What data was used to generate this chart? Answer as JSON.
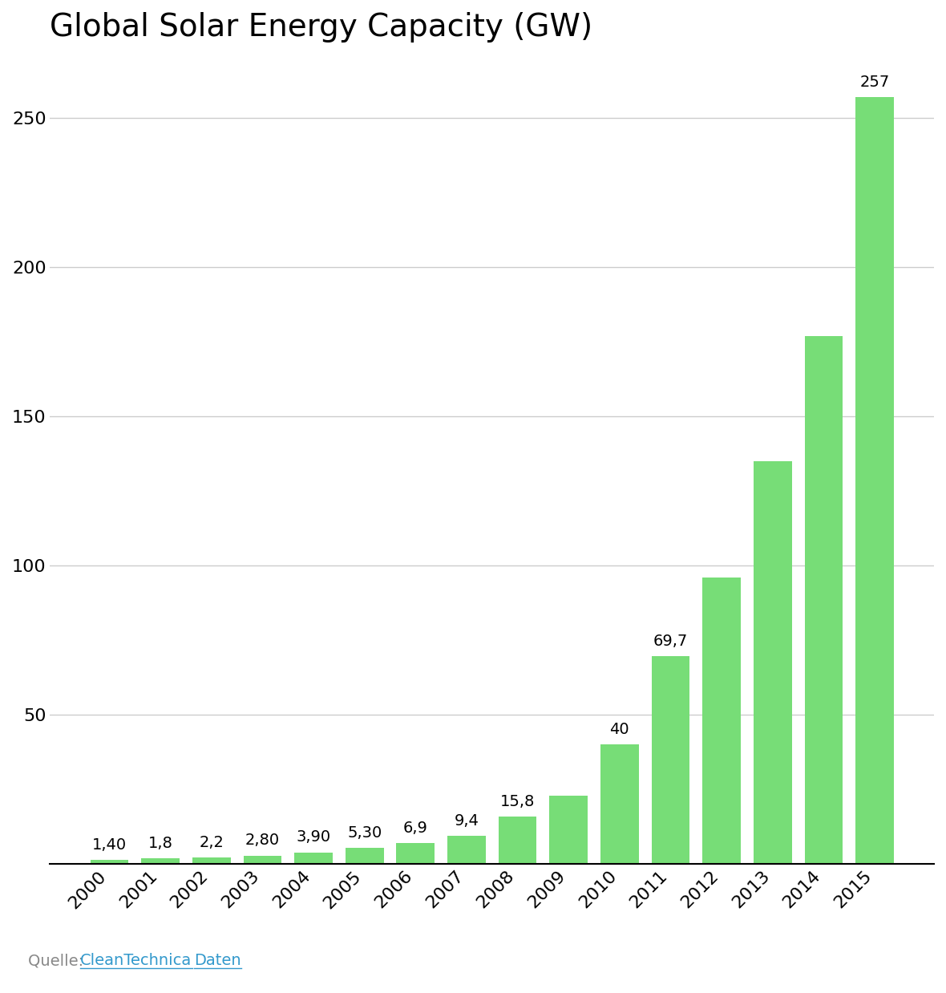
{
  "title": "Global Solar Energy Capacity (GW)",
  "categories": [
    "2000",
    "2001",
    "2002",
    "2003",
    "2004",
    "2005",
    "2006",
    "2007",
    "2008",
    "2009",
    "2010",
    "2011",
    "2012",
    "2013",
    "2014",
    "2015"
  ],
  "values": [
    1.4,
    1.8,
    2.2,
    2.8,
    3.9,
    5.3,
    6.9,
    9.4,
    15.8,
    23,
    40,
    69.7,
    96,
    135,
    177,
    257
  ],
  "labels": [
    "1,40",
    "1,8",
    "2,2",
    "2,80",
    "3,90",
    "5,30",
    "6,9",
    "9,4",
    "15,8",
    "",
    "40",
    "69,7",
    "",
    "",
    "",
    "257"
  ],
  "bar_color": "#77DD77",
  "background_color": "#FFFFFF",
  "yticks": [
    50,
    100,
    150,
    200,
    250
  ],
  "ylim": [
    0,
    270
  ],
  "grid_color": "#CCCCCC",
  "title_fontsize": 28,
  "tick_fontsize": 16,
  "label_fontsize": 14,
  "source_text": "Quelle: ",
  "source_link1": "CleanTechnica",
  "source_link2": "Daten",
  "source_color": "#888888",
  "link_color": "#3399CC"
}
